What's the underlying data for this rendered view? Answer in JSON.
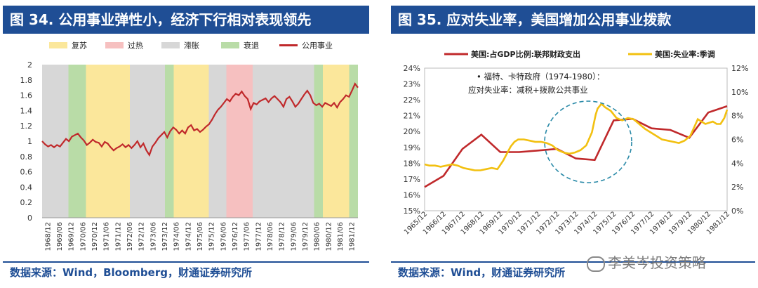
{
  "left": {
    "title": "图 34. 公用事业弹性小，经济下行相对表现领先",
    "source": "数据来源：Wind，Bloomberg，财通证券研究所",
    "chart_data": {
      "type": "line",
      "title": "",
      "legend": [
        "复苏",
        "过热",
        "滞胀",
        "衰退",
        "公用事业"
      ],
      "legend_colors": [
        "#fbe79b",
        "#f6c0c0",
        "#d7d7d7",
        "#b9dca7",
        "#c0292b"
      ],
      "ylim": [
        0,
        2
      ],
      "yticks": [
        "0",
        "0.2",
        "0.4",
        "0.6",
        "0.8",
        "1",
        "1.2",
        "1.4",
        "1.6",
        "1.8",
        "2"
      ],
      "xticks": [
        "1968/12",
        "1969/06",
        "1969/12",
        "1970/06",
        "1970/12",
        "1971/06",
        "1971/12",
        "1972/06",
        "1972/12",
        "1973/06",
        "1973/12",
        "1974/06",
        "1974/12",
        "1975/06",
        "1975/12",
        "1976/06",
        "1976/12",
        "1977/06",
        "1977/12",
        "1978/06",
        "1978/12",
        "1979/06",
        "1979/12",
        "1980/06",
        "1980/12",
        "1981/06",
        "1981/12"
      ],
      "phases": [
        {
          "phase": "滞胀",
          "from": 0,
          "to": 3
        },
        {
          "phase": "衰退",
          "from": 3,
          "to": 5
        },
        {
          "phase": "复苏",
          "from": 5,
          "to": 10
        },
        {
          "phase": "滞胀",
          "from": 10,
          "to": 14
        },
        {
          "phase": "衰退",
          "from": 14,
          "to": 15
        },
        {
          "phase": "复苏",
          "from": 15,
          "to": 19
        },
        {
          "phase": "滞胀",
          "from": 19,
          "to": 21
        },
        {
          "phase": "过热",
          "from": 21,
          "to": 24
        },
        {
          "phase": "滞胀",
          "from": 24,
          "to": 31
        },
        {
          "phase": "衰退",
          "from": 31,
          "to": 32
        },
        {
          "phase": "复苏",
          "from": 32,
          "to": 35
        },
        {
          "phase": "衰退",
          "from": 35,
          "to": 36
        }
      ],
      "series": [
        {
          "name": "公用事业",
          "color": "#c0292b",
          "values": [
            1.0,
            0.96,
            0.93,
            0.95,
            0.92,
            0.95,
            0.93,
            0.98,
            1.03,
            1.0,
            1.06,
            1.08,
            1.1,
            1.05,
            1.01,
            0.95,
            0.98,
            1.02,
            0.99,
            0.98,
            0.93,
            0.99,
            0.97,
            0.92,
            0.88,
            0.91,
            0.93,
            0.96,
            0.92,
            0.95,
            0.91,
            0.95,
            1.0,
            0.92,
            0.97,
            0.88,
            0.82,
            0.93,
            0.98,
            1.04,
            1.08,
            1.12,
            1.05,
            1.13,
            1.18,
            1.15,
            1.1,
            1.14,
            1.1,
            1.18,
            1.21,
            1.14,
            1.16,
            1.12,
            1.15,
            1.19,
            1.22,
            1.28,
            1.35,
            1.41,
            1.45,
            1.5,
            1.55,
            1.52,
            1.58,
            1.62,
            1.6,
            1.65,
            1.59,
            1.55,
            1.42,
            1.5,
            1.48,
            1.52,
            1.54,
            1.56,
            1.51,
            1.56,
            1.59,
            1.55,
            1.51,
            1.45,
            1.55,
            1.58,
            1.52,
            1.45,
            1.49,
            1.55,
            1.61,
            1.66,
            1.6,
            1.5,
            1.47,
            1.49,
            1.45,
            1.5,
            1.48,
            1.46,
            1.5,
            1.44,
            1.51,
            1.55,
            1.6,
            1.58,
            1.66,
            1.75,
            1.7
          ]
        }
      ]
    }
  },
  "right": {
    "title": "图 35. 应对失业率，美国增加公用事业拨款",
    "source": "数据来源：Wind，财通证券研究所",
    "watermark": "李美岑投资策略",
    "annotation_line1": "• 福特、卡特政府（1974-1980）：",
    "annotation_line2": "应对失业率：减税+拨款公共事业",
    "chart_data": {
      "type": "line",
      "title": "",
      "y_left": {
        "min": 15,
        "max": 24,
        "ticks": [
          "15%",
          "16%",
          "17%",
          "18%",
          "19%",
          "20%",
          "21%",
          "22%",
          "23%",
          "24%"
        ]
      },
      "y_right": {
        "min": 0,
        "max": 12,
        "ticks": [
          "0%",
          "2%",
          "4%",
          "6%",
          "8%",
          "10%",
          "12%"
        ]
      },
      "xticks": [
        "1965/12",
        "1966/12",
        "1967/12",
        "1968/12",
        "1969/12",
        "1970/12",
        "1971/12",
        "1972/12",
        "1973/12",
        "1974/12",
        "1975/12",
        "1976/12",
        "1977/12",
        "1978/12",
        "1979/12",
        "1980/12",
        "1981/12"
      ],
      "series": [
        {
          "name": "美国:占GDP比例:联邦财政支出",
          "axis": "left",
          "color": "#c0292b",
          "x": [
            1965.95,
            1966.95,
            1967.95,
            1968.95,
            1969.95,
            1970.95,
            1971.95,
            1972.95,
            1973.95,
            1974.95,
            1975.95,
            1976.95,
            1977.95,
            1978.95,
            1979.95,
            1980.95,
            1981.95
          ],
          "values": [
            16.5,
            17.2,
            18.9,
            19.8,
            18.7,
            18.7,
            18.8,
            18.9,
            18.3,
            18.2,
            20.7,
            20.8,
            20.2,
            20.1,
            19.6,
            21.2,
            21.6
          ]
        },
        {
          "name": "美国:失业率:季调",
          "axis": "right",
          "color": "#f2c010",
          "x": [
            1965.95,
            1966.2,
            1966.5,
            1966.8,
            1967.1,
            1967.4,
            1967.7,
            1968.0,
            1968.3,
            1968.6,
            1968.9,
            1969.2,
            1969.5,
            1969.8,
            1970.1,
            1970.3,
            1970.5,
            1970.7,
            1970.9,
            1971.2,
            1971.5,
            1971.8,
            1972.1,
            1972.4,
            1972.7,
            1973.0,
            1973.3,
            1973.6,
            1973.9,
            1974.2,
            1974.5,
            1974.8,
            1975.0,
            1975.1,
            1975.3,
            1975.5,
            1975.8,
            1976.1,
            1976.4,
            1976.7,
            1977.0,
            1977.3,
            1977.6,
            1977.9,
            1978.2,
            1978.5,
            1978.8,
            1979.1,
            1979.4,
            1979.7,
            1980.0,
            1980.2,
            1980.4,
            1980.6,
            1980.8,
            1981.0,
            1981.2,
            1981.4,
            1981.6,
            1981.8,
            1981.95
          ],
          "values": [
            3.9,
            3.8,
            3.8,
            3.7,
            3.8,
            3.9,
            3.8,
            3.6,
            3.5,
            3.4,
            3.4,
            3.5,
            3.6,
            3.5,
            4.2,
            4.8,
            5.4,
            5.8,
            6.0,
            6.0,
            5.9,
            5.8,
            5.8,
            5.7,
            5.5,
            5.1,
            4.9,
            4.8,
            4.9,
            5.1,
            5.5,
            6.6,
            8.1,
            8.6,
            9.0,
            8.7,
            8.4,
            7.8,
            7.6,
            7.8,
            7.7,
            7.3,
            6.9,
            6.6,
            6.3,
            6.0,
            5.9,
            5.8,
            5.7,
            5.9,
            6.3,
            7.0,
            7.7,
            7.5,
            7.3,
            7.4,
            7.5,
            7.3,
            7.3,
            7.8,
            8.5
          ]
        }
      ]
    }
  }
}
